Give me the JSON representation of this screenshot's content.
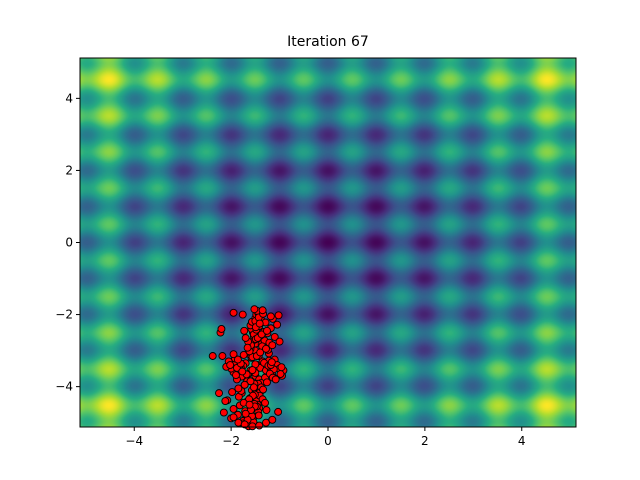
{
  "chart_data": {
    "type": "scatter",
    "title": "Iteration 67",
    "xlabel": "",
    "ylabel": "",
    "xlim": [
      -5.12,
      5.12
    ],
    "ylim": [
      -5.12,
      5.12
    ],
    "xticks": [
      -4,
      -2,
      0,
      2,
      4
    ],
    "yticks": [
      -4,
      -2,
      0,
      2,
      4
    ],
    "xtick_labels": [
      "−4",
      "−2",
      "0",
      "2",
      "4"
    ],
    "ytick_labels": [
      "−4",
      "−2",
      "0",
      "2",
      "4"
    ],
    "background": {
      "type": "heatmap",
      "function": "rastrigin",
      "colormap": "viridis"
    },
    "points": {
      "color": "#ff0000",
      "edgecolor": "#000000",
      "x": [
        -1.52,
        -1.48,
        -1.55,
        -1.45,
        -1.6,
        -1.4,
        -1.5,
        -1.35,
        -1.65,
        -1.58,
        -1.42,
        -1.7,
        -1.3,
        -1.62,
        -1.38,
        -1.75,
        -1.25,
        -1.5,
        -1.46,
        -1.54,
        -1.8,
        -1.2,
        -1.85,
        -1.15,
        -1.9,
        -1.1,
        -1.67,
        -1.33,
        -1.57,
        -1.43,
        -1.72,
        -1.28,
        -1.49,
        -1.51,
        -1.63,
        -1.37,
        -1.78,
        -1.22,
        -1.95,
        -1.05,
        -2.0,
        -1.0,
        -1.52,
        -1.48,
        -1.6,
        -1.4,
        -1.56,
        -1.44,
        -1.68,
        -1.32,
        -1.83,
        -1.18,
        -1.53,
        -1.47,
        -1.59,
        -1.41,
        -1.74,
        -1.26,
        -1.88,
        -1.12,
        -2.05,
        -0.95,
        -1.55,
        -1.45,
        -1.65,
        -1.35,
        -1.5,
        -1.5,
        -1.62,
        -1.38,
        -1.77,
        -1.23,
        -1.92,
        -1.08,
        -2.1,
        -0.92,
        -1.58,
        -1.42,
        -1.7,
        -1.3,
        -1.95,
        -2.18,
        -2.02,
        -1.88,
        -1.18,
        -0.98,
        -1.6,
        -1.44,
        -1.53,
        -1.47,
        -1.66,
        -1.34,
        -1.8,
        -1.2,
        -1.57,
        -1.43,
        -1.73,
        -1.27,
        -1.86,
        -1.14,
        -1.5,
        -1.55,
        -1.45,
        -1.63,
        -1.37,
        -1.78,
        -1.22,
        -1.52,
        -1.48,
        -1.6,
        -1.4,
        -1.69,
        -1.31,
        -1.84,
        -1.16,
        -1.9,
        -1.1,
        -2.08,
        -0.96,
        -1.56,
        -1.44,
        -1.62,
        -1.38,
        -1.75,
        -1.25,
        -1.52,
        -1.48,
        -1.58,
        -1.42,
        -1.71,
        -1.29,
        -1.86,
        -1.14,
        -2.0,
        -1.02,
        -1.54,
        -1.46,
        -1.64,
        -1.36,
        -1.79,
        -1.21,
        -1.51,
        -1.49,
        -1.61,
        -1.39,
        -1.68,
        -1.32,
        -1.82,
        -1.18,
        -1.95,
        -1.05,
        -2.15,
        -1.5,
        -1.57,
        -1.43,
        -1.66,
        -1.34,
        -1.76,
        -1.24,
        -1.53,
        -1.47,
        -1.6,
        -1.4,
        -1.72,
        -1.28,
        -1.85,
        -1.15,
        -1.98,
        -1.0,
        -1.55,
        -1.45,
        -1.63,
        -1.37,
        -1.74,
        -1.26,
        -1.51,
        -1.49,
        -1.59,
        -1.41,
        -1.7,
        -2.22,
        -2.38,
        -2.25,
        -2.12,
        -1.95,
        -1.85,
        -1.72,
        -1.56,
        -1.42,
        -1.28,
        -1.15,
        -1.03,
        -1.52,
        -1.95,
        -2.2,
        -1.76,
        -1.35,
        -1.18,
        -1.08,
        -1.62
      ],
      "y": [
        -3.5,
        -3.45,
        -3.6,
        -3.4,
        -3.55,
        -3.48,
        -3.7,
        -3.3,
        -3.65,
        -3.2,
        -3.8,
        -3.35,
        -3.75,
        -3.1,
        -3.9,
        -3.42,
        -3.58,
        -3.0,
        -4.0,
        -3.52,
        -3.47,
        -3.62,
        -3.38,
        -3.68,
        -3.32,
        -3.25,
        -3.85,
        -2.9,
        -4.1,
        -3.15,
        -3.95,
        -3.55,
        -2.8,
        -4.2,
        -3.05,
        -4.05,
        -3.72,
        -3.28,
        -3.6,
        -3.4,
        -3.5,
        -3.5,
        -2.7,
        -4.3,
        -2.95,
        -4.15,
        -3.18,
        -3.92,
        -3.66,
        -3.34,
        -3.44,
        -3.56,
        -2.6,
        -4.4,
        -2.85,
        -4.25,
        -3.12,
        -3.88,
        -3.48,
        -3.52,
        -3.3,
        -3.7,
        -2.5,
        -4.5,
        -2.75,
        -4.35,
        -3.62,
        -3.38,
        -3.02,
        -4.02,
        -3.58,
        -3.42,
        -3.22,
        -3.78,
        -3.45,
        -3.55,
        -2.4,
        -4.6,
        -2.65,
        -4.45,
        -3.1,
        -3.15,
        -3.4,
        -3.8,
        -3.4,
        -3.65,
        -2.3,
        -4.7,
        -2.55,
        -4.55,
        -2.92,
        -4.08,
        -3.36,
        -3.64,
        -2.2,
        -4.8,
        -2.45,
        -4.65,
        -3.25,
        -3.75,
        -2.1,
        -4.9,
        -2.35,
        -4.75,
        -2.82,
        -4.18,
        -3.08,
        -3.92,
        -2.0,
        -5.0,
        -2.25,
        -4.85,
        -2.72,
        -4.28,
        -3.32,
        -3.68,
        -2.62,
        -4.38,
        -3.46,
        -3.54,
        -1.95,
        -5.05,
        -2.15,
        -4.95,
        -2.52,
        -4.48,
        -2.42,
        -4.58,
        -2.32,
        -4.68,
        -2.22,
        -4.78,
        -2.12,
        -4.88,
        -2.02,
        -4.98,
        -1.9,
        -5.1,
        -2.88,
        -4.12,
        -2.78,
        -4.22,
        -2.68,
        -4.32,
        -2.58,
        -4.42,
        -2.48,
        -4.52,
        -2.38,
        -4.62,
        -2.28,
        -4.72,
        -2.18,
        -4.82,
        -2.08,
        -4.92,
        -1.98,
        -5.02,
        -2.98,
        -4.02,
        -3.15,
        -3.85,
        -3.05,
        -3.95,
        -2.95,
        -4.05,
        -2.85,
        -4.15,
        -2.75,
        -4.25,
        -2.65,
        -4.35,
        -2.55,
        -4.45,
        -2.45,
        -4.55,
        -2.35,
        -4.65,
        -2.25,
        -4.75,
        -2.5,
        -3.15,
        -4.18,
        -4.4,
        -4.85,
        -5.0,
        -5.05,
        -5.1,
        -5.08,
        -5.0,
        -4.92,
        -4.7,
        -1.85,
        -1.95,
        -2.4,
        -2.0,
        -1.88,
        -2.05,
        -3.8,
        -4.5
      ]
    }
  }
}
